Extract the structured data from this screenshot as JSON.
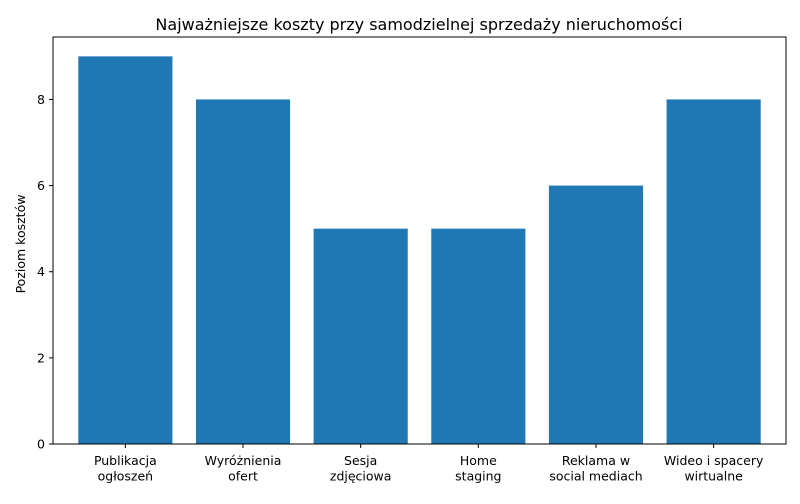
{
  "chart_data": {
    "type": "bar",
    "title": "Najważniejsze koszty przy samodzielnej sprzedaży nieruchomości",
    "xlabel": "",
    "ylabel": "Poziom kosztów",
    "categories": [
      [
        "Publikacja",
        "ogłoszeń"
      ],
      [
        "Wyróżnienia",
        "ofert"
      ],
      [
        "Sesja",
        "zdjęciowa"
      ],
      [
        "Home",
        "staging"
      ],
      [
        "Reklama w",
        "social mediach"
      ],
      [
        "Wideo i spacery",
        "wirtualne"
      ]
    ],
    "values": [
      9,
      8,
      5,
      5,
      6,
      8
    ],
    "ylim": [
      0,
      9.45
    ],
    "yticks": [
      0,
      2,
      4,
      6,
      8
    ],
    "grid": false,
    "bar_color": "#1f77b4",
    "axis_color": "#000000"
  }
}
